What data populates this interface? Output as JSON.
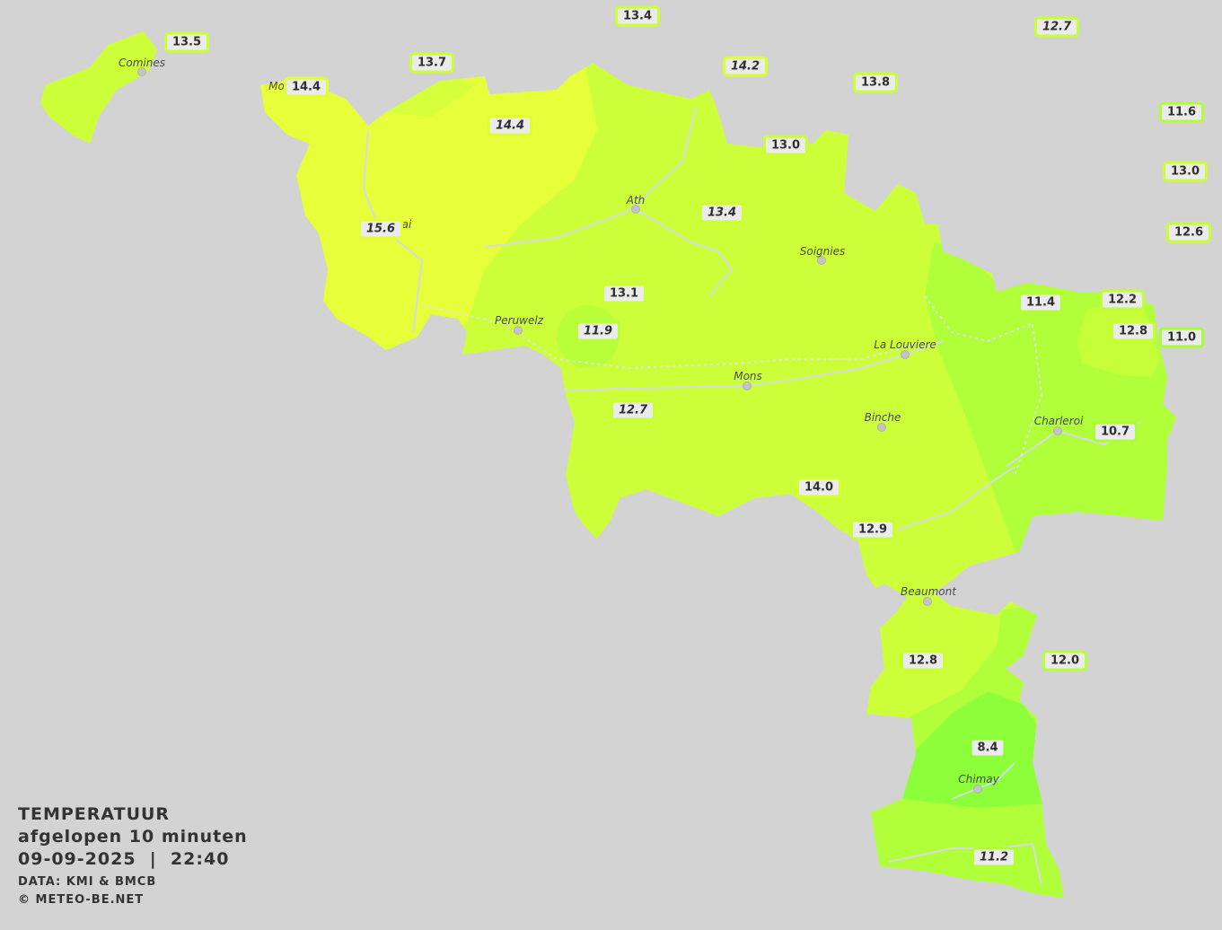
{
  "legend": {
    "title": "TEMPERATUUR",
    "subtitle": "afgelopen 10 minuten",
    "datetime": "09-09-2025  |  22:40",
    "source": "DATA: KMI & BMCB",
    "copyright": "© METEO-BE.NET"
  },
  "colors": {
    "background": "#d3d3d3",
    "t_15": "#e6ff3a",
    "t_13": "#ccff3a",
    "t_11": "#b0ff3a",
    "t_8": "#8cff3a"
  },
  "cities": [
    "Comines",
    "Mo",
    "ai",
    "Ath",
    "Soignies",
    "Peruwelz",
    "La Louviere",
    "Mons",
    "Binche",
    "Charleroi",
    "Beaumont",
    "Chimay"
  ],
  "stations": [
    {
      "value": "13.4",
      "italic": false,
      "color": "#ccff33"
    },
    {
      "value": "12.7",
      "italic": true,
      "color": "#c8ff33"
    },
    {
      "value": "13.5",
      "italic": false,
      "color": "#ccff33"
    },
    {
      "value": "13.7",
      "italic": false,
      "color": "#ccff33"
    },
    {
      "value": "14.2",
      "italic": true,
      "color": "#d8ff33"
    },
    {
      "value": "13.8",
      "italic": false,
      "color": "#ccff33"
    },
    {
      "value": "14.4",
      "italic": false,
      "color": "#e0ff33"
    },
    {
      "value": "11.6",
      "italic": false,
      "color": "#b0ff33"
    },
    {
      "value": "14.4",
      "italic": true,
      "color": "#e0ff33"
    },
    {
      "value": "13.0",
      "italic": false,
      "color": "#ccff33"
    },
    {
      "value": "13.0",
      "italic": false,
      "color": "#ccff33"
    },
    {
      "value": "13.4",
      "italic": true,
      "color": "#ccff33"
    },
    {
      "value": "15.6",
      "italic": true,
      "color": "#e6ff33"
    },
    {
      "value": "12.6",
      "italic": false,
      "color": "#c8ff33"
    },
    {
      "value": "13.1",
      "italic": false,
      "color": "#ccff33"
    },
    {
      "value": "11.4",
      "italic": false,
      "color": "#b0ff33"
    },
    {
      "value": "12.2",
      "italic": false,
      "color": "#c0ff33"
    },
    {
      "value": "12.8",
      "italic": false,
      "color": "#c8ff33"
    },
    {
      "value": "11.0",
      "italic": false,
      "color": "#a8ff33"
    },
    {
      "value": "11.9",
      "italic": true,
      "color": "#b8ff33"
    },
    {
      "value": "12.7",
      "italic": true,
      "color": "#c8ff33"
    },
    {
      "value": "10.7",
      "italic": false,
      "color": "#a8ff33"
    },
    {
      "value": "14.0",
      "italic": false,
      "color": "#d8ff33"
    },
    {
      "value": "12.9",
      "italic": false,
      "color": "#c8ff33"
    },
    {
      "value": "12.8",
      "italic": false,
      "color": "#c8ff33"
    },
    {
      "value": "12.0",
      "italic": false,
      "color": "#b8ff33"
    },
    {
      "value": "8.4",
      "italic": false,
      "color": "#8cff33"
    },
    {
      "value": "11.2",
      "italic": true,
      "color": "#b0ff33"
    }
  ]
}
